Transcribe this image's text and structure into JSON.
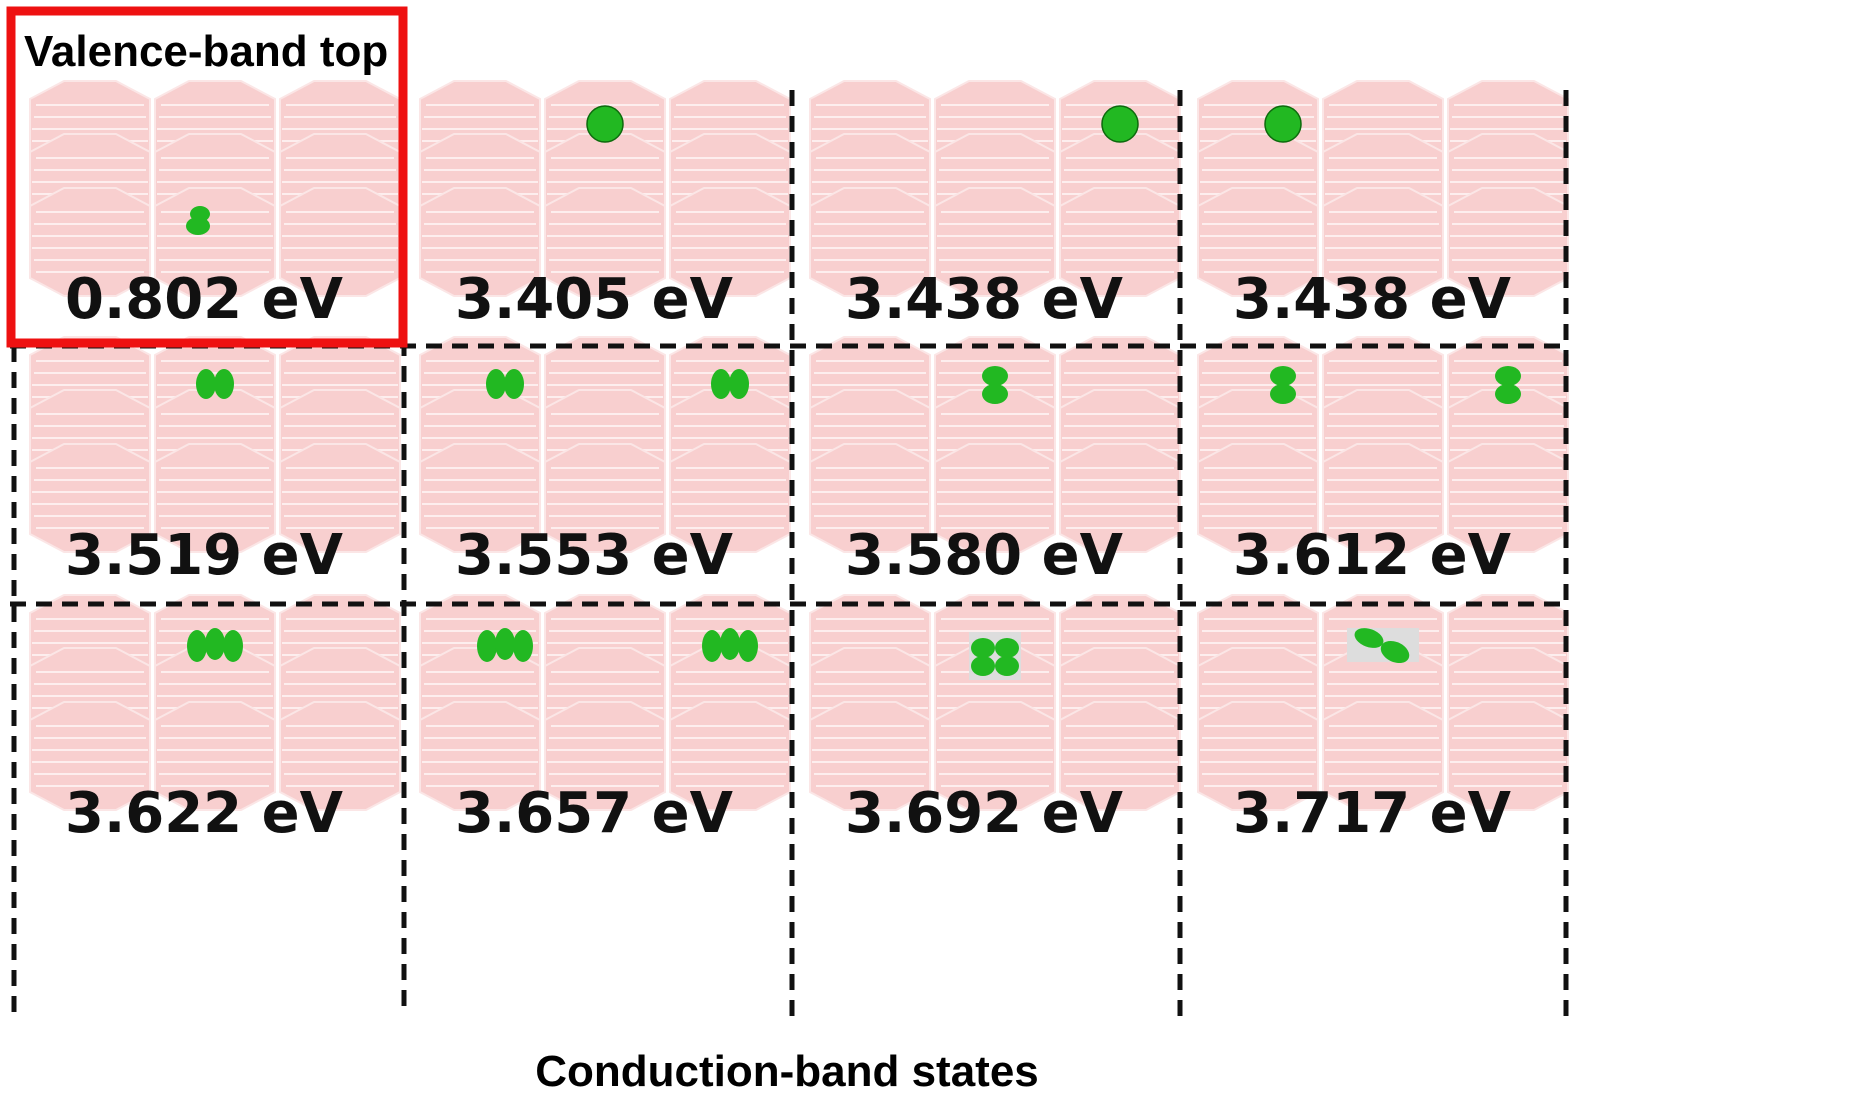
{
  "valence_label": "Valence-band top",
  "caption": "Conduction-band states",
  "colors": {
    "hexagon_fill": "#f8cfcf",
    "hexagon_stroke": "#fbe6e6",
    "orbital": "#22b822",
    "highlight_border": "#ee1111",
    "divider": "#111111"
  },
  "panels": [
    {
      "energy": "0.802 eV",
      "orbital_shape": "small-blob",
      "orbital_sites": [
        "bottom-middle"
      ]
    },
    {
      "energy": "3.405 eV",
      "orbital_shape": "sphere",
      "orbital_sites": [
        "top-middle"
      ]
    },
    {
      "energy": "3.438 eV",
      "orbital_shape": "sphere",
      "orbital_sites": [
        "top-right"
      ]
    },
    {
      "energy": "3.438 eV",
      "orbital_shape": "sphere",
      "orbital_sites": [
        "top-left"
      ]
    },
    {
      "energy": "3.519 eV",
      "orbital_shape": "two-lobes",
      "orbital_sites": [
        "top-middle"
      ]
    },
    {
      "energy": "3.553 eV",
      "orbital_shape": "two-lobes",
      "orbital_sites": [
        "top-left",
        "top-right"
      ]
    },
    {
      "energy": "3.580 eV",
      "orbital_shape": "stacked-lobes",
      "orbital_sites": [
        "top-middle"
      ]
    },
    {
      "energy": "3.612 eV",
      "orbital_shape": "stacked-lobes",
      "orbital_sites": [
        "top-left",
        "top-right"
      ]
    },
    {
      "energy": "3.622 eV",
      "orbital_shape": "three-lobes",
      "orbital_sites": [
        "top-middle"
      ]
    },
    {
      "energy": "3.657 eV",
      "orbital_shape": "three-lobes",
      "orbital_sites": [
        "top-left",
        "top-right"
      ]
    },
    {
      "energy": "3.692 eV",
      "orbital_shape": "four-lobes",
      "orbital_sites": [
        "top-middle"
      ]
    },
    {
      "energy": "3.717 eV",
      "orbital_shape": "tilted-lobes",
      "orbital_sites": [
        "top-middle"
      ]
    }
  ]
}
